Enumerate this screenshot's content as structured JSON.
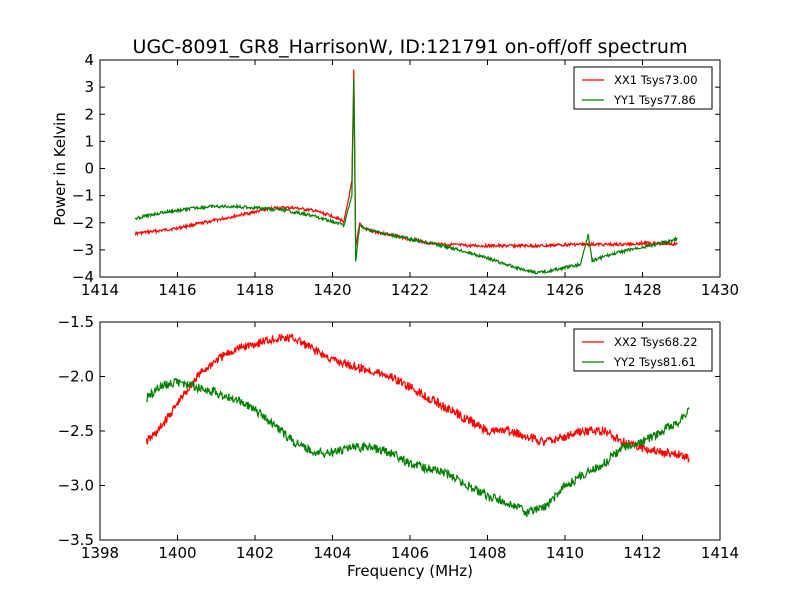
{
  "chart_data": [
    {
      "type": "line",
      "title": "UGC-8091_GR8_HarrisonW, ID:121791 on-off/off spectrum",
      "xlabel": "",
      "ylabel": "Power in Kelvin",
      "xlim": [
        1414,
        1430
      ],
      "ylim": [
        -4,
        4
      ],
      "xticks": [
        "1414",
        "1416",
        "1418",
        "1420",
        "1422",
        "1424",
        "1426",
        "1428",
        "1430"
      ],
      "yticks": [
        "−4",
        "−3",
        "−2",
        "−1",
        "0",
        "1",
        "2",
        "3",
        "4"
      ],
      "legend_position": "top-right",
      "series": [
        {
          "name": "XX1 Tsys73.00",
          "color": "#ff0000",
          "x": [
            1414.9,
            1415.5,
            1416.0,
            1416.5,
            1417.0,
            1417.5,
            1418.0,
            1418.5,
            1419.0,
            1419.5,
            1420.0,
            1420.3,
            1420.5,
            1420.55,
            1420.6,
            1420.7,
            1420.8,
            1421.0,
            1421.5,
            1422.0,
            1422.5,
            1423.0,
            1423.5,
            1424.0,
            1424.5,
            1425.0,
            1425.5,
            1426.0,
            1426.5,
            1427.0,
            1427.5,
            1428.0,
            1428.5,
            1428.9
          ],
          "y": [
            -2.4,
            -2.3,
            -2.2,
            -2.05,
            -1.9,
            -1.75,
            -1.6,
            -1.45,
            -1.45,
            -1.55,
            -1.75,
            -1.95,
            -0.5,
            3.6,
            -2.9,
            -2.0,
            -2.2,
            -2.3,
            -2.45,
            -2.6,
            -2.75,
            -2.8,
            -2.85,
            -2.85,
            -2.85,
            -2.85,
            -2.85,
            -2.8,
            -2.8,
            -2.8,
            -2.8,
            -2.75,
            -2.75,
            -2.8
          ]
        },
        {
          "name": "YY1 Tsys77.86",
          "color": "#008000",
          "x": [
            1414.9,
            1415.5,
            1416.0,
            1416.5,
            1417.0,
            1417.5,
            1418.0,
            1418.5,
            1419.0,
            1419.5,
            1420.0,
            1420.3,
            1420.5,
            1420.55,
            1420.6,
            1420.7,
            1420.8,
            1421.0,
            1421.5,
            1422.0,
            1422.5,
            1423.0,
            1423.5,
            1424.0,
            1424.5,
            1425.0,
            1425.3,
            1425.7,
            1426.0,
            1426.4,
            1426.6,
            1426.7,
            1427.0,
            1427.5,
            1428.0,
            1428.5,
            1428.9
          ],
          "y": [
            -1.85,
            -1.65,
            -1.55,
            -1.45,
            -1.4,
            -1.4,
            -1.45,
            -1.5,
            -1.6,
            -1.75,
            -1.95,
            -2.1,
            -1.0,
            3.3,
            -3.4,
            -2.1,
            -2.2,
            -2.3,
            -2.45,
            -2.6,
            -2.75,
            -2.9,
            -3.1,
            -3.3,
            -3.55,
            -3.75,
            -3.85,
            -3.75,
            -3.65,
            -3.55,
            -2.4,
            -3.4,
            -3.25,
            -3.05,
            -2.9,
            -2.75,
            -2.6
          ]
        }
      ]
    },
    {
      "type": "line",
      "title": "",
      "xlabel": "Frequency (MHz)",
      "ylabel": "",
      "xlim": [
        1398,
        1414
      ],
      "ylim": [
        -3.5,
        -1.5
      ],
      "xticks": [
        "1398",
        "1400",
        "1402",
        "1404",
        "1406",
        "1408",
        "1410",
        "1412",
        "1414"
      ],
      "yticks": [
        "−3.5",
        "−3.0",
        "−2.5",
        "−2.0",
        "−1.5"
      ],
      "legend_position": "top-right",
      "series": [
        {
          "name": "XX2 Tsys68.22",
          "color": "#ff0000",
          "x": [
            1399.2,
            1399.5,
            1400.0,
            1400.5,
            1401.0,
            1401.5,
            1402.0,
            1402.5,
            1403.0,
            1403.5,
            1404.0,
            1404.5,
            1405.0,
            1405.5,
            1406.0,
            1406.5,
            1407.0,
            1407.5,
            1408.0,
            1408.5,
            1409.0,
            1409.5,
            1410.0,
            1410.5,
            1411.0,
            1411.5,
            1412.0,
            1412.5,
            1413.0,
            1413.2
          ],
          "y": [
            -2.6,
            -2.5,
            -2.25,
            -2.0,
            -1.85,
            -1.75,
            -1.7,
            -1.65,
            -1.65,
            -1.75,
            -1.85,
            -1.9,
            -1.95,
            -2.0,
            -2.1,
            -2.2,
            -2.3,
            -2.4,
            -2.5,
            -2.5,
            -2.55,
            -2.6,
            -2.55,
            -2.5,
            -2.5,
            -2.6,
            -2.65,
            -2.7,
            -2.72,
            -2.75
          ]
        },
        {
          "name": "YY2 Tsys81.61",
          "color": "#008000",
          "x": [
            1399.2,
            1399.5,
            1400.0,
            1400.5,
            1401.0,
            1401.5,
            1402.0,
            1402.5,
            1403.0,
            1403.5,
            1404.0,
            1404.5,
            1405.0,
            1405.5,
            1406.0,
            1406.5,
            1407.0,
            1407.5,
            1408.0,
            1408.5,
            1409.0,
            1409.5,
            1410.0,
            1410.5,
            1411.0,
            1411.5,
            1412.0,
            1412.5,
            1413.0,
            1413.2
          ],
          "y": [
            -2.2,
            -2.1,
            -2.05,
            -2.1,
            -2.15,
            -2.2,
            -2.3,
            -2.45,
            -2.6,
            -2.7,
            -2.7,
            -2.65,
            -2.65,
            -2.7,
            -2.8,
            -2.85,
            -2.9,
            -3.0,
            -3.1,
            -3.15,
            -3.25,
            -3.2,
            -3.0,
            -2.9,
            -2.8,
            -2.65,
            -2.6,
            -2.5,
            -2.4,
            -2.3
          ]
        }
      ]
    }
  ]
}
